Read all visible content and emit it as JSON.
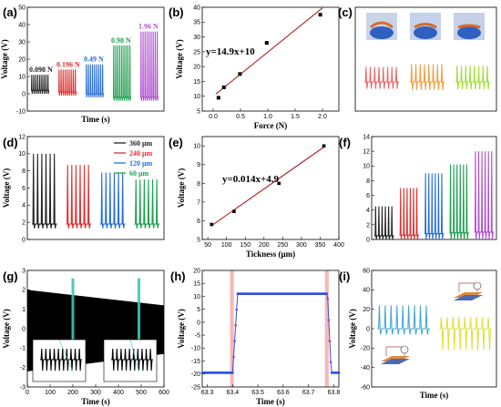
{
  "chart_data": [
    {
      "panel": "(a)",
      "type": "line",
      "ylabel": "Voltage (V)",
      "xlabel": "Time (s)",
      "ylim": [
        -10,
        50
      ],
      "yticks": [
        -10,
        0,
        10,
        20,
        30,
        40,
        50
      ],
      "series": [
        {
          "name": "0.098 N",
          "peak": 11,
          "trough": 0,
          "color": "#222222"
        },
        {
          "name": "0.196 N",
          "peak": 14,
          "trough": -1,
          "color": "#e03030"
        },
        {
          "name": "0.49 N",
          "peak": 17,
          "trough": -2,
          "color": "#2a6fd6"
        },
        {
          "name": "0.98 N",
          "peak": 28,
          "trough": -4,
          "color": "#1fa050"
        },
        {
          "name": "1.96 N",
          "peak": 36,
          "trough": -4,
          "color": "#b050d0"
        }
      ]
    },
    {
      "panel": "(b)",
      "type": "scatter",
      "ylabel": "Voltage (V)",
      "xlabel": "Force (N)",
      "xlim": [
        -0.2,
        2.3
      ],
      "ylim": [
        5,
        40
      ],
      "xticks": [
        0.0,
        0.5,
        1.0,
        1.5,
        2.0
      ],
      "yticks": [
        5,
        10,
        15,
        20,
        25,
        30,
        35,
        40
      ],
      "x": [
        0.098,
        0.196,
        0.49,
        0.98,
        1.96
      ],
      "y": [
        9.5,
        13,
        17.5,
        28,
        37.5
      ],
      "fit": {
        "label": "y=14.9x+10",
        "slope": 14.9,
        "intercept": 10
      }
    },
    {
      "panel": "(c)",
      "type": "line",
      "series": [
        {
          "name": "",
          "color": "#e86a6a",
          "amplitude": 0.55
        },
        {
          "name": "",
          "color": "#f0a040",
          "amplitude": 0.65
        },
        {
          "name": "",
          "color": "#a8dd40",
          "amplitude": 0.6
        }
      ]
    },
    {
      "panel": "(d)",
      "type": "line",
      "ylabel": "Voltage (V)",
      "ylim": [
        0,
        12
      ],
      "yticks": [
        0,
        2,
        4,
        6,
        8,
        10,
        12
      ],
      "series": [
        {
          "name": "360 μm",
          "peak": 10,
          "trough": 1.8,
          "color": "#222222"
        },
        {
          "name": "240 μm",
          "peak": 8.7,
          "trough": 1.8,
          "color": "#e03030"
        },
        {
          "name": "120 μm",
          "peak": 7.8,
          "trough": 1.8,
          "color": "#2a6fd6"
        },
        {
          "name": "60 μm",
          "peak": 7.0,
          "trough": 1.8,
          "color": "#1fa050"
        }
      ]
    },
    {
      "panel": "(e)",
      "type": "scatter",
      "ylabel": "Voltage (V)",
      "xlabel": "Tickness (μm)",
      "xlim": [
        35,
        400
      ],
      "ylim": [
        5,
        10.5
      ],
      "xticks": [
        50,
        100,
        150,
        200,
        250,
        300,
        350,
        400
      ],
      "yticks": [
        5,
        6,
        7,
        8,
        9,
        10
      ],
      "x": [
        60,
        120,
        240,
        360
      ],
      "y": [
        5.8,
        6.5,
        8.0,
        10.0
      ],
      "fit": {
        "label": "y=0.014x+4.9",
        "slope": 0.014,
        "intercept": 4.9
      }
    },
    {
      "panel": "(f)",
      "type": "line",
      "ylim": [
        0,
        14
      ],
      "yticks": [
        0,
        2,
        4,
        6,
        8,
        10,
        12,
        14
      ],
      "series": [
        {
          "name": "",
          "peak": 4.5,
          "trough": 0.5,
          "color": "#222222"
        },
        {
          "name": "",
          "peak": 7.0,
          "trough": 0.6,
          "color": "#e03030"
        },
        {
          "name": "",
          "peak": 9.0,
          "trough": 0.8,
          "color": "#2a6fd6"
        },
        {
          "name": "",
          "peak": 10.2,
          "trough": 0.9,
          "color": "#1fa050"
        },
        {
          "name": "",
          "peak": 12.0,
          "trough": 1.0,
          "color": "#b050d0"
        }
      ]
    },
    {
      "panel": "(g)",
      "type": "area",
      "ylabel": "Voltage (V)",
      "xlabel": "Time (s)",
      "xlim": [
        0,
        600
      ],
      "ylim": [
        -3,
        3
      ],
      "xticks": [
        0,
        100,
        200,
        300,
        400,
        500,
        600
      ],
      "yticks": [
        -3,
        -2,
        -1,
        0,
        1,
        2,
        3
      ],
      "envelope": {
        "upper_start": 2.0,
        "upper_end": 1.2,
        "lower_start": -2.2,
        "lower_end": -1.3
      },
      "highlights_x": [
        200,
        490
      ]
    },
    {
      "panel": "(h)",
      "type": "scatter",
      "ylabel": "Voltage (V)",
      "xlabel": "Time (s)",
      "xlim": [
        63.28,
        63.82
      ],
      "ylim": [
        -25,
        20
      ],
      "xticks": [
        63.3,
        63.4,
        63.5,
        63.6,
        63.7,
        63.8
      ],
      "yticks": [
        -25,
        -20,
        -15,
        -10,
        -5,
        0,
        5,
        10,
        15,
        20
      ],
      "rise_x": 63.4,
      "fall_x": 63.775,
      "low": -19.5,
      "high": 11,
      "shaded_x": [
        [
          63.39,
          63.405
        ],
        [
          63.765,
          63.78
        ]
      ]
    },
    {
      "panel": "(i)",
      "type": "line",
      "ylabel": "Voltage (V)",
      "xlabel": "Time (s)",
      "ylim": [
        -60,
        60
      ],
      "yticks": [
        -60,
        -40,
        -20,
        0,
        20,
        40,
        60
      ],
      "series": [
        {
          "name": "",
          "peak": 24,
          "trough": -6,
          "color": "#4aa8d8"
        },
        {
          "name": "",
          "peak": 12,
          "trough": -22,
          "color": "#e0e040"
        }
      ]
    }
  ]
}
